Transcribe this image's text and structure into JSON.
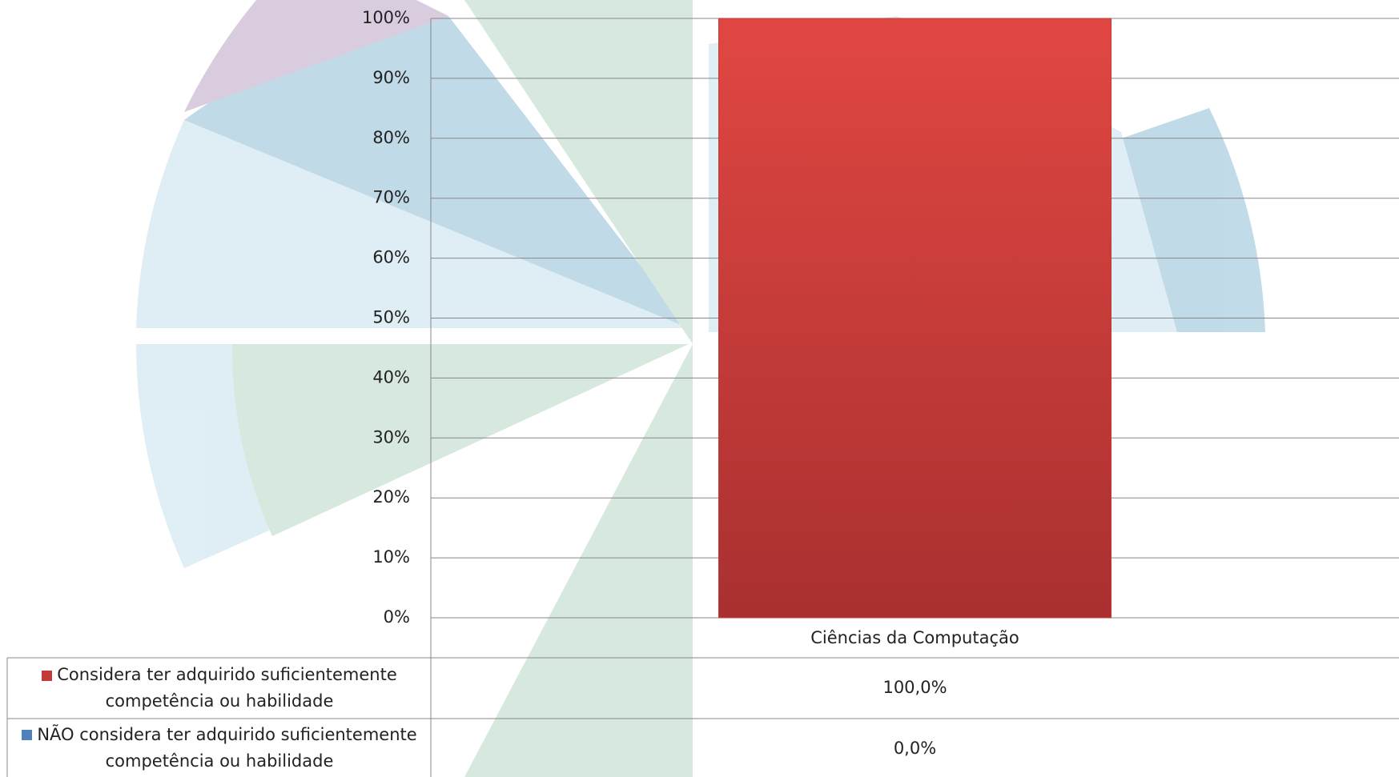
{
  "chart_data": {
    "type": "stacked_bar",
    "categories": [
      "Ciências da Computação"
    ],
    "series": [
      {
        "name": "Considera ter adquirido suficientemente competência ou habilidade",
        "color": "#c43a39",
        "values": [
          100
        ],
        "value_labels": [
          "100,0%"
        ]
      },
      {
        "name": "NÃO considera ter adquirido suficientemente competência ou habilidade",
        "color": "#4f81bd",
        "values": [
          0
        ],
        "value_labels": [
          "0,0%"
        ]
      }
    ],
    "ylim": [
      0,
      100
    ],
    "yticks": [
      {
        "value": 0,
        "label": "0%"
      },
      {
        "value": 10,
        "label": "10%"
      },
      {
        "value": 20,
        "label": "20%"
      },
      {
        "value": 30,
        "label": "30%"
      },
      {
        "value": 40,
        "label": "40%"
      },
      {
        "value": 50,
        "label": "50%"
      },
      {
        "value": 60,
        "label": "60%"
      },
      {
        "value": 70,
        "label": "70%"
      },
      {
        "value": 80,
        "label": "80%"
      },
      {
        "value": 90,
        "label": "90%"
      },
      {
        "value": 100,
        "label": "100%"
      }
    ],
    "grid": true
  }
}
